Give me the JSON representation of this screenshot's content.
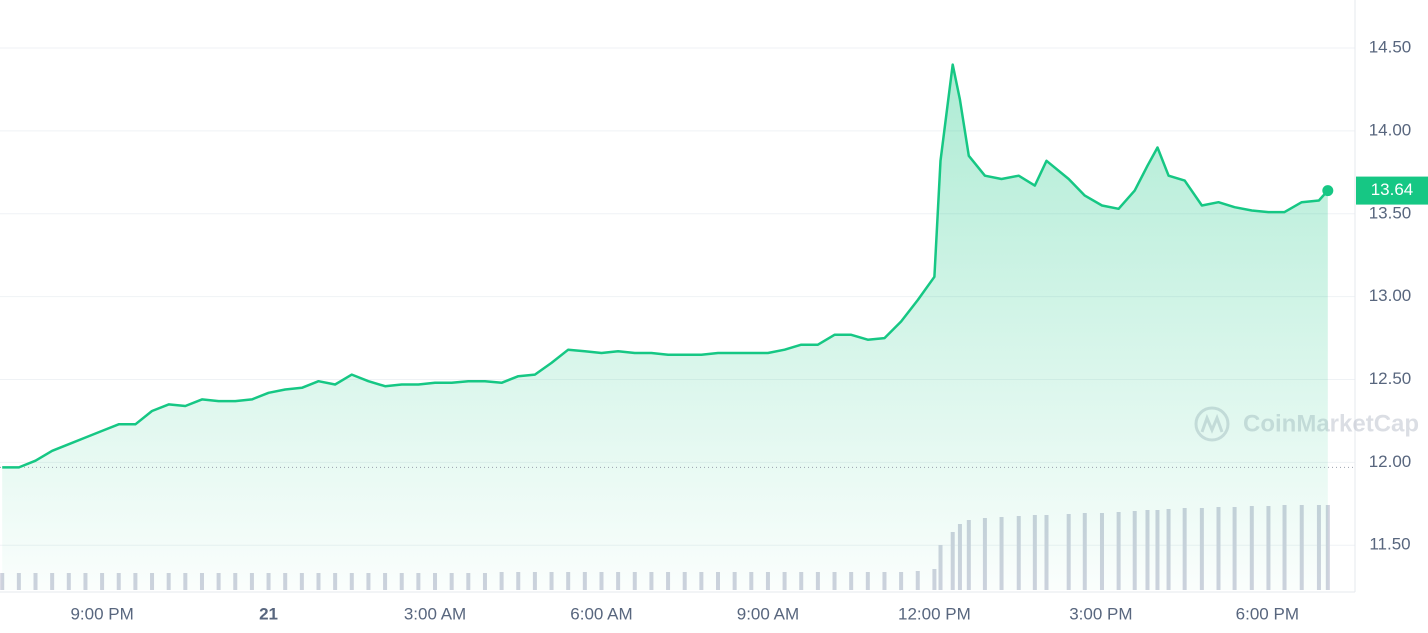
{
  "chart_data": {
    "type": "line",
    "series": [
      {
        "color": "#16c784",
        "x": [
          19.2,
          19.5,
          19.8,
          20.1,
          20.4,
          20.7,
          21,
          21.3,
          21.6,
          21.9,
          22.2,
          22.5,
          22.8,
          23.1,
          23.4,
          23.7,
          24,
          24.3,
          24.6,
          24.9,
          25.2,
          25.5,
          25.8,
          26.1,
          26.4,
          26.7,
          27,
          27.3,
          27.6,
          27.9,
          28.2,
          28.5,
          28.8,
          29.1,
          29.4,
          29.7,
          30,
          30.3,
          30.6,
          30.9,
          31.2,
          31.5,
          31.8,
          32.1,
          32.4,
          32.7,
          33,
          33.3,
          33.6,
          33.9,
          34.2,
          34.5,
          34.8,
          35.1,
          35.4,
          35.7,
          36,
          36.11,
          36.33,
          36.46,
          36.62,
          36.91,
          37.21,
          37.52,
          37.81,
          38.02,
          38.42,
          38.71,
          39.02,
          39.32,
          39.61,
          39.84,
          40.02,
          40.22,
          40.51,
          40.82,
          41.12,
          41.41,
          41.72,
          42.02,
          42.31,
          42.62,
          42.93,
          43.09
        ],
        "values": [
          11.97,
          11.97,
          12.01,
          12.07,
          12.11,
          12.15,
          12.19,
          12.23,
          12.23,
          12.31,
          12.35,
          12.34,
          12.38,
          12.37,
          12.37,
          12.38,
          12.42,
          12.44,
          12.45,
          12.49,
          12.47,
          12.53,
          12.49,
          12.46,
          12.47,
          12.47,
          12.48,
          12.48,
          12.49,
          12.49,
          12.48,
          12.52,
          12.53,
          12.6,
          12.68,
          12.67,
          12.66,
          12.67,
          12.66,
          12.66,
          12.65,
          12.65,
          12.65,
          12.66,
          12.66,
          12.66,
          12.66,
          12.68,
          12.71,
          12.71,
          12.77,
          12.77,
          12.74,
          12.75,
          12.85,
          12.98,
          13.12,
          13.82,
          14.4,
          14.19,
          13.85,
          13.73,
          13.71,
          13.73,
          13.67,
          13.82,
          13.71,
          13.61,
          13.55,
          13.53,
          13.64,
          13.79,
          13.9,
          13.73,
          13.7,
          13.55,
          13.57,
          13.54,
          13.52,
          13.51,
          13.51,
          13.57,
          13.58,
          13.64
        ]
      }
    ],
    "volume": {
      "color": "#cfd2de",
      "values": [
        17,
        17,
        17,
        17,
        17,
        17,
        17,
        17,
        17,
        17,
        17,
        17,
        17,
        17,
        17,
        17,
        17,
        17,
        17,
        17,
        17,
        17,
        17,
        17,
        17,
        17,
        17,
        17,
        17,
        17,
        18,
        18,
        18,
        18,
        18,
        18,
        18,
        18,
        18,
        18,
        18,
        18,
        18,
        18,
        18,
        18,
        18,
        18,
        18,
        18,
        18,
        18,
        18,
        18,
        18,
        19,
        21,
        45,
        58,
        66,
        70,
        72,
        73,
        74,
        75,
        75,
        76,
        77,
        77,
        78,
        79,
        80,
        80,
        81,
        82,
        82,
        83,
        83,
        84,
        84,
        85,
        85,
        85,
        85
      ]
    },
    "xlim": [
      19.16,
      43.58
    ],
    "ylim": [
      11.23,
      14.79
    ],
    "xticks": [
      {
        "value": 21,
        "label": "9:00 PM"
      },
      {
        "value": 24,
        "label": "21"
      },
      {
        "value": 27,
        "label": "3:00 AM"
      },
      {
        "value": 30,
        "label": "6:00 AM"
      },
      {
        "value": 33,
        "label": "9:00 AM"
      },
      {
        "value": 36,
        "label": "12:00 PM"
      },
      {
        "value": 39,
        "label": "3:00 PM"
      },
      {
        "value": 42,
        "label": "6:00 PM"
      }
    ],
    "yticks": [
      {
        "value": 11.5,
        "label": "11.50"
      },
      {
        "value": 12,
        "label": "12.00"
      },
      {
        "value": 12.5,
        "label": "12.50"
      },
      {
        "value": 13,
        "label": "13.00"
      },
      {
        "value": 13.5,
        "label": "13.50"
      },
      {
        "value": 14,
        "label": "14.00"
      },
      {
        "value": 14.5,
        "label": "14.50"
      }
    ],
    "grid": true,
    "watermark": "CoinMarketCap"
  }
}
